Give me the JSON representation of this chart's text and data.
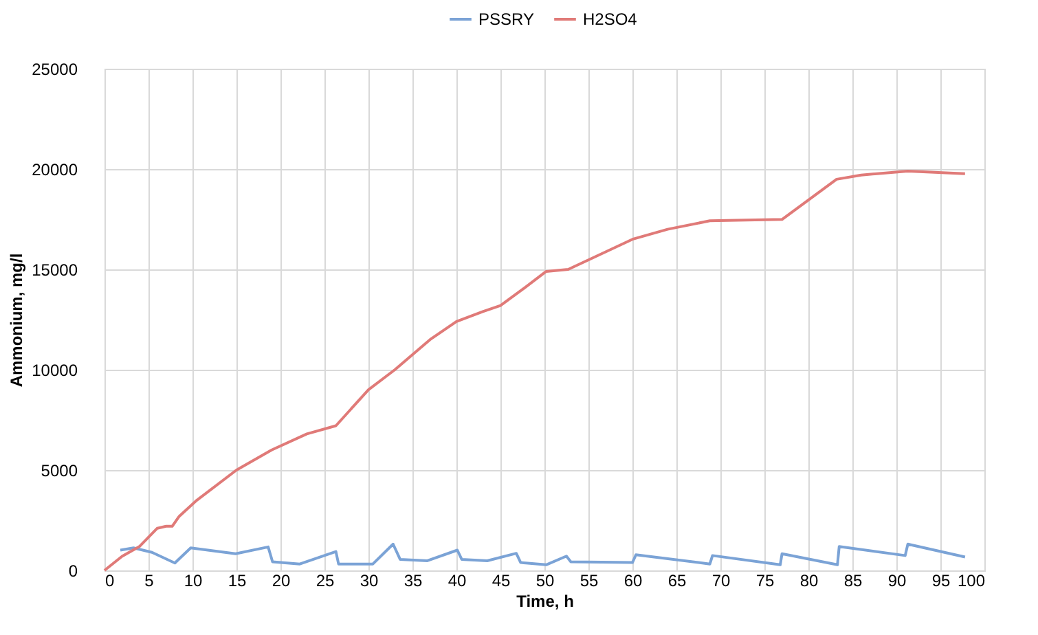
{
  "chart_data": {
    "type": "line",
    "xlabel": "Time, h",
    "ylabel": "Ammonium, mg/l",
    "xlim": [
      0,
      100
    ],
    "xticks": [
      0,
      5,
      10,
      15,
      20,
      25,
      30,
      35,
      40,
      45,
      50,
      55,
      60,
      65,
      70,
      75,
      80,
      85,
      90,
      95,
      100
    ],
    "ylim": [
      0,
      25000
    ],
    "yticks": [
      0,
      5000,
      10000,
      15000,
      20000,
      25000
    ],
    "grid": true,
    "legend": "top",
    "marker": "none",
    "line_style": "solid",
    "series": [
      {
        "name": "PSSRY",
        "color": "#7ba3d6",
        "x": [
          1.8,
          3.3,
          5.4,
          8,
          9.8,
          14.9,
          18.6,
          19.1,
          22.2,
          26.3,
          26.6,
          30.5,
          32.8,
          33.6,
          36.7,
          40.1,
          40.6,
          43.5,
          46.8,
          47.3,
          50.2,
          52.5,
          53,
          60,
          60.4,
          68.8,
          69.1,
          76.8,
          77,
          83.3,
          83.5,
          91,
          91.3,
          97.8
        ],
        "values": [
          1010,
          1120,
          900,
          370,
          1120,
          830,
          1170,
          430,
          320,
          940,
          320,
          320,
          1310,
          550,
          480,
          1010,
          550,
          480,
          850,
          390,
          280,
          710,
          430,
          390,
          780,
          320,
          740,
          280,
          830,
          280,
          1190,
          740,
          1310,
          670
        ]
      },
      {
        "name": "H2SO4",
        "color": "#e07a78",
        "x": [
          0,
          2,
          4,
          6,
          7,
          7.7,
          8.5,
          10.5,
          15,
          19,
          23,
          26.3,
          30,
          33,
          37,
          40,
          43,
          45,
          47.5,
          50.2,
          52.7,
          60,
          64,
          68.8,
          77,
          83.2,
          86,
          91.3,
          97.8
        ],
        "values": [
          0,
          700,
          1200,
          2100,
          2200,
          2200,
          2700,
          3500,
          5000,
          6000,
          6800,
          7210,
          9000,
          10000,
          11500,
          12400,
          12900,
          13200,
          14000,
          14900,
          15000,
          16500,
          17000,
          17420,
          17490,
          19490,
          19700,
          19900,
          19770
        ]
      }
    ]
  }
}
